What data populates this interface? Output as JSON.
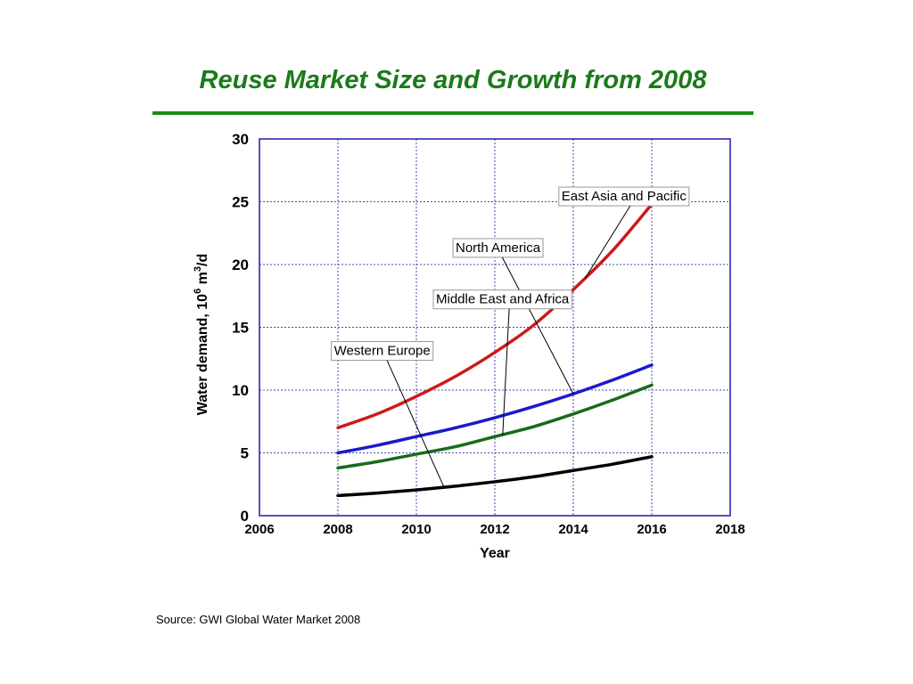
{
  "slide": {
    "title": "Reuse Market Size and Growth from 2008",
    "source": "Source: GWI Global Water Market 2008"
  },
  "colors": {
    "title": "#1b7a1b",
    "rule": "#1b8a1b",
    "axis": "#1a1ab0",
    "grid": "#4a4aa8"
  },
  "chart_data": {
    "type": "line",
    "title": "",
    "xlabel": "Year",
    "ylabel_main": "Water demand, 10",
    "ylabel_sup1": "6",
    "ylabel_mid": " m",
    "ylabel_sup2": "3",
    "ylabel_end": "/d",
    "xlim": [
      2006,
      2018
    ],
    "ylim": [
      0,
      30
    ],
    "xticks": [
      2006,
      2008,
      2010,
      2012,
      2014,
      2016,
      2018
    ],
    "yticks": [
      0,
      5,
      10,
      15,
      20,
      25,
      30
    ],
    "grid": true,
    "x": [
      2008,
      2009,
      2010,
      2011,
      2012,
      2013,
      2014,
      2015,
      2016
    ],
    "series": [
      {
        "name": "East Asia and Pacific",
        "color": "#cc1a1a",
        "values": [
          7.0,
          8.1,
          9.5,
          11.1,
          13.0,
          15.2,
          18.0,
          21.1,
          24.8
        ]
      },
      {
        "name": "North America",
        "color": "#1a1acc",
        "values": [
          5.0,
          5.6,
          6.3,
          7.0,
          7.8,
          8.7,
          9.7,
          10.8,
          12.0
        ]
      },
      {
        "name": "Middle East and Africa",
        "color": "#1a6a1a",
        "values": [
          3.8,
          4.3,
          4.9,
          5.5,
          6.3,
          7.1,
          8.1,
          9.2,
          10.4
        ]
      },
      {
        "name": "Western Europe",
        "color": "#000000",
        "values": [
          1.6,
          1.8,
          2.05,
          2.35,
          2.7,
          3.1,
          3.6,
          4.1,
          4.7
        ]
      }
    ],
    "callouts": [
      {
        "series": 0,
        "label_x": 2013.7,
        "label_y": 25.1,
        "target_x": 2014.3,
        "target_y": 18.9
      },
      {
        "series": 1,
        "label_x": 2011.0,
        "label_y": 21.0,
        "target_x": 2014.0,
        "target_y": 9.7
      },
      {
        "series": 2,
        "label_x": 2010.5,
        "label_y": 16.9,
        "target_x": 2012.2,
        "target_y": 6.4
      },
      {
        "series": 3,
        "label_x": 2007.9,
        "label_y": 12.8,
        "target_x": 2010.7,
        "target_y": 2.3
      }
    ]
  }
}
